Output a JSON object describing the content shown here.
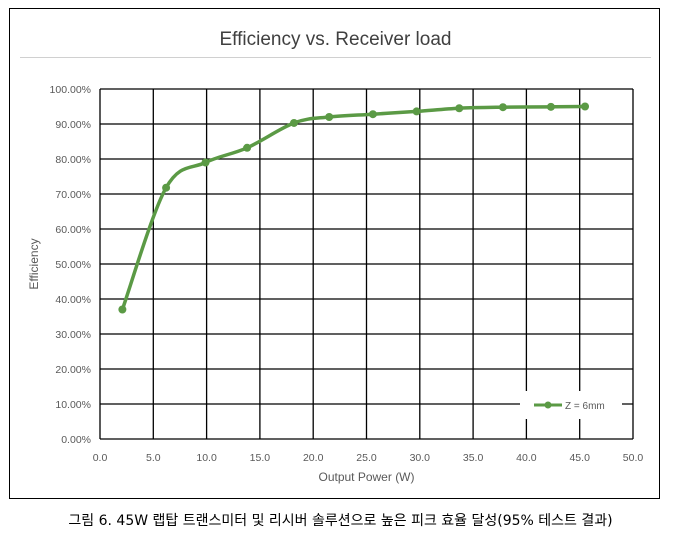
{
  "chart_data": {
    "type": "line",
    "title": "Efficiency vs. Receiver load",
    "xlabel": "Output Power (W)",
    "ylabel": "Efficiency",
    "xlim": [
      0,
      50
    ],
    "ylim": [
      0,
      100
    ],
    "x_ticks": [
      "0.0",
      "5.0",
      "10.0",
      "15.0",
      "20.0",
      "25.0",
      "30.0",
      "35.0",
      "40.0",
      "45.0",
      "50.0"
    ],
    "y_ticks": [
      "0.00%",
      "10.00%",
      "20.00%",
      "30.00%",
      "40.00%",
      "50.00%",
      "60.00%",
      "70.00%",
      "80.00%",
      "90.00%",
      "100.00%"
    ],
    "grid": true,
    "legend_position": "bottom-right",
    "series": [
      {
        "name": "Z = 6mm",
        "color": "#5b9a45",
        "points": [
          {
            "x": 2.1,
            "y": 37.0
          },
          {
            "x": 6.2,
            "y": 71.8
          },
          {
            "x": 9.9,
            "y": 79.0
          },
          {
            "x": 13.8,
            "y": 83.2
          },
          {
            "x": 18.2,
            "y": 90.3
          },
          {
            "x": 21.5,
            "y": 92.0
          },
          {
            "x": 25.6,
            "y": 92.8
          },
          {
            "x": 29.7,
            "y": 93.6
          },
          {
            "x": 33.7,
            "y": 94.5
          },
          {
            "x": 37.8,
            "y": 94.8
          },
          {
            "x": 42.3,
            "y": 94.9
          },
          {
            "x": 45.5,
            "y": 95.0
          }
        ]
      }
    ]
  },
  "caption": "그림 6. 45W 랩탑 트랜스미터 및 리시버 솔루션으로 높은 피크 효율 달성(95% 테스트 결과)"
}
